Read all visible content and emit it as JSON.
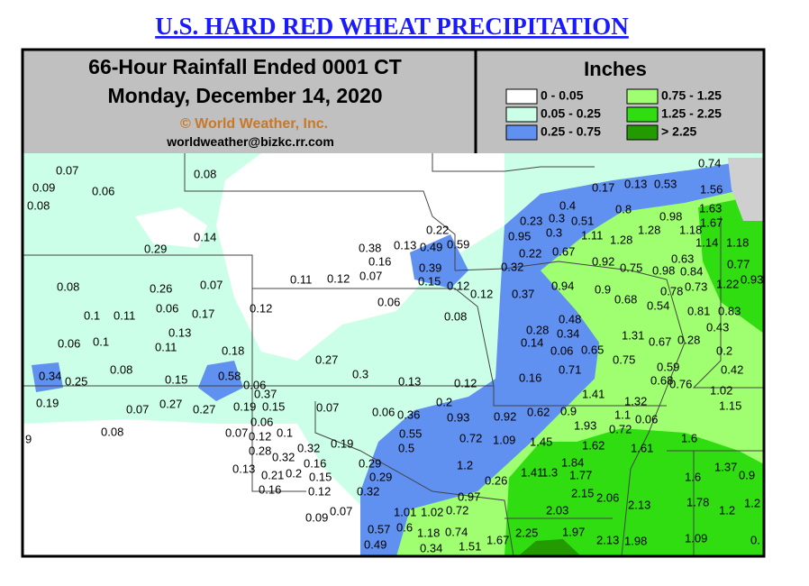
{
  "header": {
    "title": "U.S. HARD RED WHEAT PRECIPITATION",
    "line1": "66-Hour Rainfall Ended 0001 CT",
    "line2": "Monday, December 14, 2020",
    "copyright": "© World Weather, Inc.",
    "email": "worldweather@bizkc.rr.com"
  },
  "legend": {
    "title": "Inches",
    "items": [
      {
        "label": "0 - 0.05",
        "color": "#ffffff"
      },
      {
        "label": "0.05 - 0.25",
        "color": "#ccffe8"
      },
      {
        "label": "0.25 - 0.75",
        "color": "#6090f0"
      },
      {
        "label": "0.75 - 1.25",
        "color": "#a0ff70"
      },
      {
        "label": "1.25 - 2.25",
        "color": "#30dd10"
      },
      {
        "label": "> 2.25",
        "color": "#229a00"
      }
    ]
  },
  "map": {
    "labels": [
      "0.07",
      "0.09",
      "0.06",
      "0.08",
      "0.08",
      "0.74",
      "0.17",
      "0.13",
      "0.53",
      "1.56",
      "0.4",
      "0.8",
      "0.98",
      "1.63",
      "0.23",
      "0.3",
      "0.51",
      "1.67",
      "0.95",
      "0.3",
      "1.11",
      "1.28",
      "1.18",
      "1.28",
      "1.14",
      "1.18",
      "0.22",
      "0.59",
      "0.49",
      "0.13",
      "0.38",
      "0.16",
      "0.14",
      "0.29",
      "0.22",
      "0.67",
      "0.92",
      "0.63",
      "0.75",
      "0.98",
      "0.84",
      "0.77",
      "0.39",
      "0.32",
      "0.11",
      "0.12",
      "0.07",
      "0.15",
      "0.12",
      "0.12",
      "0.37",
      "0.94",
      "0.9",
      "0.78",
      "0.73",
      "1.22",
      "0.93",
      "0.08",
      "0.26",
      "0.07",
      "0.12",
      "0.06",
      "0.68",
      "0.54",
      "0.81",
      "0.83",
      "0.1",
      "0.11",
      "0.06",
      "0.17",
      "0.08",
      "0.48",
      "0.28",
      "0.34",
      "0.43",
      "0.13",
      "0.06",
      "0.1",
      "0.11",
      "1.31",
      "0.67",
      "0.28",
      "0.14",
      "0.06",
      "0.65",
      "0.2",
      "0.18",
      "0.27",
      "0.75",
      "0.08",
      "0.34",
      "0.25",
      "0.15",
      "0.58",
      "0.3",
      "0.13",
      "0.12",
      "0.16",
      "0.71",
      "0.59",
      "0.42",
      "0.68",
      "0.76",
      "0.06",
      "0.37",
      "1.02",
      "1.41",
      "0.19",
      "0.07",
      "0.27",
      "0.27",
      "0.19",
      "0.15",
      "0.07",
      "0.2",
      "0.06",
      "0.36",
      "1.32",
      "1.15",
      "0.93",
      "0.92",
      "0.62",
      "0.9",
      "1.1",
      "0.06",
      "0.06",
      "0.72",
      "1.93",
      "0.08",
      "0.07",
      "0.12",
      "0.1",
      "0.55",
      "0.72",
      "1.09",
      "1.45",
      "1.6",
      "0.28",
      "0.32",
      "0.19",
      "1.62",
      "1.61",
      "0.5",
      "0.32",
      "0.16",
      "0.29",
      "1.84",
      "1.2",
      "1.41",
      "1.3",
      "1.77",
      "0.13",
      "0.21",
      "0.2",
      "0.15",
      "0.29",
      "0.26",
      "1.6",
      "1.37",
      "0.9",
      "0.16",
      "0.12",
      "0.32",
      "2.15",
      "2.06",
      "2.13",
      "0.97",
      "1.78",
      "1.01",
      "1.02",
      "0.72",
      "2.03",
      "1.2",
      "1.2",
      "0.09",
      "0.07",
      "0.57",
      "0.6",
      "1.18",
      "0.74",
      "2.25",
      "1.97",
      "1.67",
      "2.13",
      "1.98",
      "1.09",
      "0.49",
      "0.34",
      "1.51",
      "9",
      "0."
    ]
  }
}
